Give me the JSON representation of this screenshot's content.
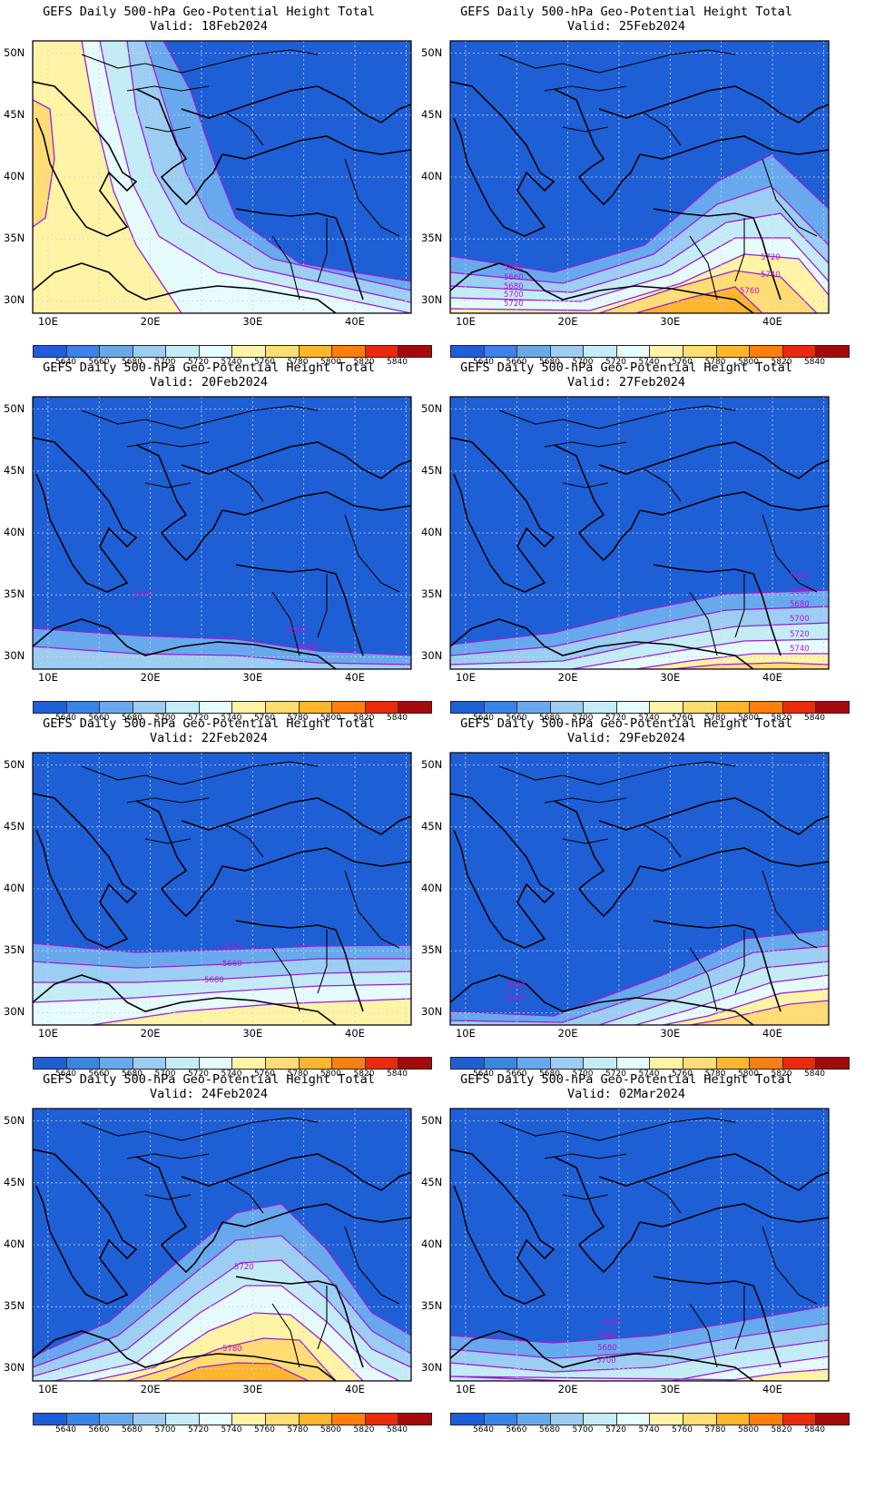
{
  "figure": {
    "title_line1": "GEFS Daily 500-hPa Geo-Potential Height Total",
    "valid_prefix": "Valid: ",
    "panels": [
      {
        "id": "p1",
        "valid": "18Feb2024"
      },
      {
        "id": "p2",
        "valid": "25Feb2024"
      },
      {
        "id": "p3",
        "valid": "20Feb2024"
      },
      {
        "id": "p4",
        "valid": "27Feb2024"
      },
      {
        "id": "p5",
        "valid": "22Feb2024"
      },
      {
        "id": "p6",
        "valid": "29Feb2024"
      },
      {
        "id": "p7",
        "valid": "24Feb2024"
      },
      {
        "id": "p8",
        "valid": "02Mar2024"
      }
    ]
  },
  "axes": {
    "lat_labels": [
      "50N",
      "45N",
      "40N",
      "35N",
      "30N"
    ],
    "lon_labels": [
      "10E",
      "20E",
      "30E",
      "40E"
    ]
  },
  "colorbar": {
    "labels": [
      "5640",
      "5660",
      "5680",
      "5700",
      "5720",
      "5740",
      "5760",
      "5780",
      "5800",
      "5820",
      "5840"
    ],
    "colors": [
      "#1e5fd6",
      "#3a84e8",
      "#68a9ee",
      "#9ccdf2",
      "#c4ecf7",
      "#e6fbfc",
      "#fff4a6",
      "#ffdc74",
      "#ffb52e",
      "#ff7e10",
      "#e82b0a",
      "#a30b0b"
    ]
  },
  "contour_labels": {
    "p2": [
      "5640",
      "5660",
      "5680",
      "5700",
      "5720",
      "5720",
      "5740",
      "5760"
    ],
    "p3": [
      "5640",
      "5660",
      "5680"
    ],
    "p4": [
      "5640",
      "5660",
      "5680",
      "5700",
      "5720",
      "5740"
    ],
    "p5": [
      "5640",
      "5660",
      "5680"
    ],
    "p6": [
      "5640",
      "5660"
    ],
    "p7": [
      "5720",
      "5780"
    ],
    "p8": [
      "5640",
      "5660",
      "5680",
      "5700"
    ]
  }
}
